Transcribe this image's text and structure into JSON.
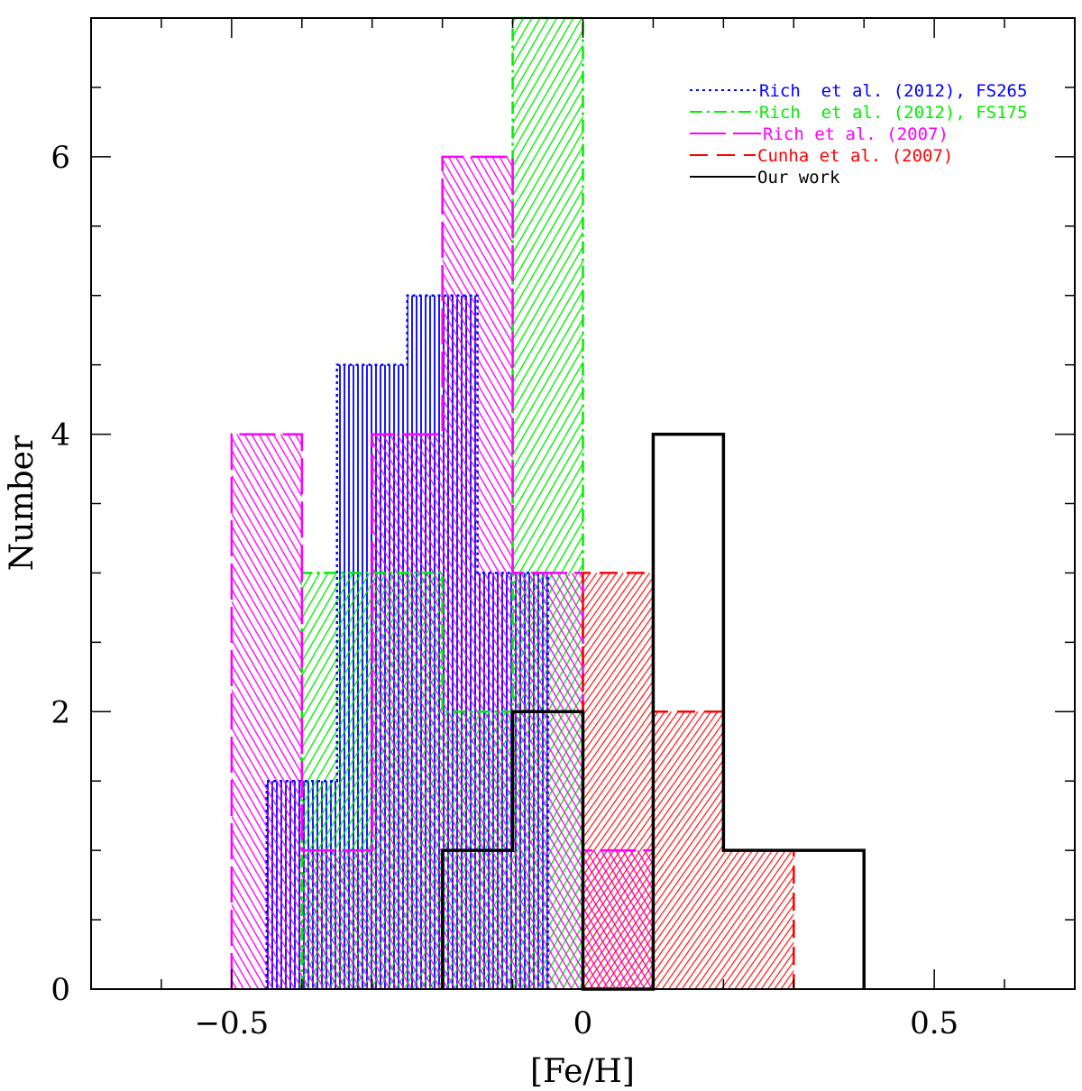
{
  "chart_data": {
    "type": "bar",
    "subtype": "overlaid-histogram",
    "title": "",
    "xlabel": "[Fe/H]",
    "ylabel": "Number",
    "xlim": [
      -0.7,
      0.7
    ],
    "ylim": [
      0,
      7
    ],
    "x_ticks": [
      -0.5,
      0,
      0.5
    ],
    "x_tick_labels": [
      "−0.5",
      "0",
      "0.5"
    ],
    "y_ticks": [
      0,
      2,
      4,
      6
    ],
    "y_tick_labels": [
      "0",
      "2",
      "4",
      "6"
    ],
    "grid": false,
    "legend_position": "top-right",
    "series": [
      {
        "name": "Rich  et al. (2012), FS265",
        "color": "#0000ff",
        "line_style": "dotted",
        "hatch": "vertical",
        "bin_edges": [
          -0.45,
          -0.35,
          -0.25,
          -0.15,
          -0.05
        ],
        "counts": [
          1.5,
          4.5,
          5,
          3
        ]
      },
      {
        "name": "Rich  et al. (2012), FS175",
        "color": "#00ee00",
        "line_style": "dash-dot",
        "hatch": "forward-diagonal",
        "bin_edges": [
          -0.4,
          -0.3,
          -0.2,
          -0.1,
          0
        ],
        "counts": [
          3,
          3,
          2,
          7
        ]
      },
      {
        "name": "Rich et al. (2007)",
        "color": "#ff00ff",
        "line_style": "long-dash",
        "hatch": "back-diagonal",
        "bin_edges": [
          -0.5,
          -0.4,
          -0.3,
          -0.2,
          -0.1,
          0,
          0.1
        ],
        "counts": [
          4,
          1,
          4,
          6,
          3,
          1
        ]
      },
      {
        "name": "Cunha et al. (2007)",
        "color": "#ff0000",
        "line_style": "dashed",
        "hatch": "forward-diagonal-dense",
        "bin_edges": [
          0,
          0.1,
          0.2,
          0.3
        ],
        "counts": [
          3,
          2,
          1
        ]
      },
      {
        "name": "Our work",
        "color": "#000000",
        "line_style": "solid",
        "hatch": "none",
        "bin_edges": [
          -0.2,
          -0.1,
          0,
          0.1,
          0.2,
          0.3,
          0.4
        ],
        "counts": [
          1,
          2,
          0,
          4,
          1,
          1
        ]
      }
    ]
  }
}
